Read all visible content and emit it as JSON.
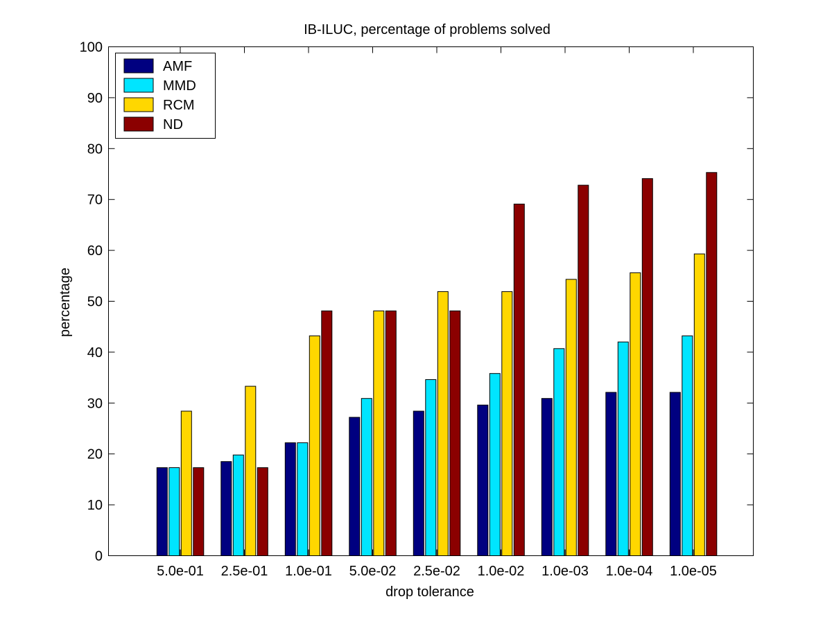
{
  "chart_data": {
    "type": "bar",
    "title": "IB-ILUC, percentage of problems solved",
    "xlabel": "drop tolerance",
    "ylabel": "percentage",
    "categories": [
      "5.0e-01",
      "2.5e-01",
      "1.0e-01",
      "5.0e-02",
      "2.5e-02",
      "1.0e-02",
      "1.0e-03",
      "1.0e-04",
      "1.0e-05"
    ],
    "ylim": [
      0,
      100
    ],
    "yticks": [
      0,
      10,
      20,
      30,
      40,
      50,
      60,
      70,
      80,
      90,
      100
    ],
    "grid": false,
    "legend_position": "top-left",
    "series": [
      {
        "name": "AMF",
        "color": "#000080",
        "values": [
          17.3,
          18.5,
          22.2,
          27.2,
          28.4,
          29.6,
          30.9,
          32.1,
          32.1
        ]
      },
      {
        "name": "MMD",
        "color": "#00e5ff",
        "values": [
          17.3,
          19.8,
          22.2,
          30.9,
          34.6,
          35.8,
          40.7,
          42.0,
          43.2
        ]
      },
      {
        "name": "RCM",
        "color": "#ffd700",
        "values": [
          28.4,
          33.3,
          43.2,
          48.1,
          51.9,
          51.9,
          54.3,
          55.6,
          59.3
        ]
      },
      {
        "name": "ND",
        "color": "#8b0000",
        "values": [
          17.3,
          17.3,
          48.1,
          48.1,
          48.1,
          69.1,
          72.8,
          74.1,
          75.3
        ]
      }
    ]
  }
}
